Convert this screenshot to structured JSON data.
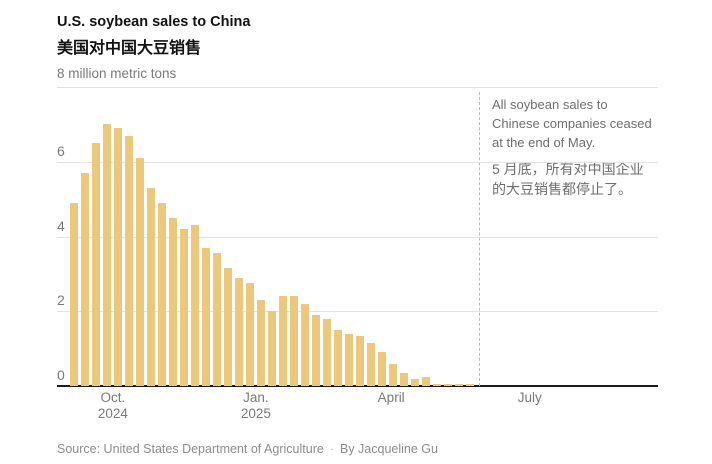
{
  "page": {
    "title": "U.S. soybean sales to China",
    "title_zh": "美国对中国大豆销售"
  },
  "chart_data": {
    "type": "bar",
    "title": "U.S. soybean sales to China",
    "title_zh": "美国对中国大豆销售",
    "unit_label": "8 million metric tons",
    "ylabel": "million metric tons",
    "ylim": [
      0,
      8
    ],
    "grid": "horizontal",
    "legend": "none",
    "grid_values": [
      8,
      6,
      4,
      2
    ],
    "ytick_values": [
      6,
      4,
      2,
      0
    ],
    "ytick_labels": [
      "6",
      "4",
      "2",
      "0"
    ],
    "x_description": "Weekly sales, autumn 2024 through end of May 2025",
    "values": [
      4.9,
      5.7,
      6.5,
      7.0,
      6.9,
      6.7,
      6.1,
      5.3,
      4.9,
      4.5,
      4.2,
      4.3,
      3.7,
      3.55,
      3.15,
      2.9,
      2.75,
      2.3,
      2.0,
      2.4,
      2.4,
      2.2,
      1.9,
      1.8,
      1.5,
      1.4,
      1.35,
      1.15,
      0.9,
      0.6,
      0.35,
      0.2,
      0.25,
      0.05,
      0.05,
      0.05,
      0.05
    ],
    "bar_color": "#ecc87d",
    "x_ticks": [
      {
        "label": "Oct.",
        "sub": "2024",
        "at_bar": 3.9
      },
      {
        "label": "Jan.",
        "sub": "2025",
        "at_bar": 16.9
      },
      {
        "label": "April",
        "sub": "",
        "at_bar": 29.2
      },
      {
        "label": "July",
        "sub": "",
        "at_bar": 41.8
      }
    ],
    "event_line": {
      "at_bar": 37.2,
      "style": "dashed"
    },
    "annotation": {
      "en": "All soybean sales to Chinese companies ceased at the end of May.",
      "zh": "5 月底，所有对中国企业的大豆销售都停止了。"
    }
  },
  "footer": {
    "source": "Source: United States Department of Agriculture",
    "separator": "·",
    "byline": "By Jacqueline Gu"
  }
}
